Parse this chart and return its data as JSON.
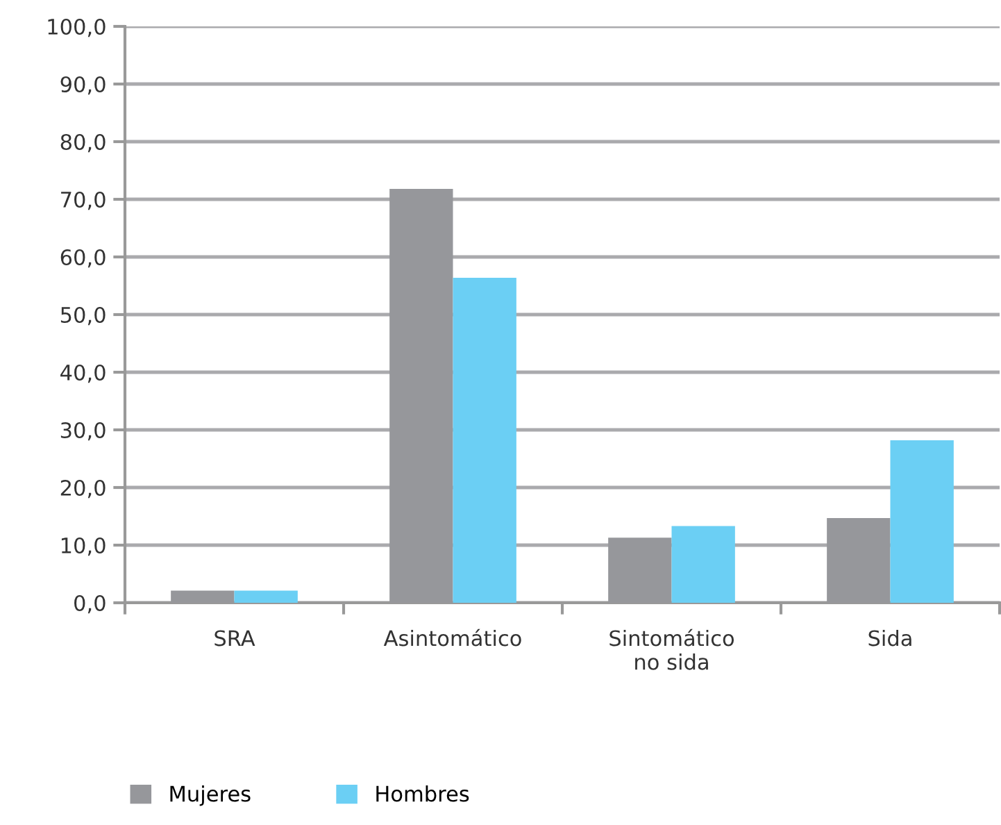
{
  "chart_data": {
    "type": "bar",
    "categories": [
      "SRA",
      "Asintomático",
      "Sintomático\nno sida",
      "Sida"
    ],
    "series": [
      {
        "name": "Mujeres",
        "color": "#96979b",
        "values": [
          2.1,
          71.8,
          11.3,
          14.7
        ]
      },
      {
        "name": "Hombres",
        "color": "#6bcff4",
        "values": [
          2.1,
          56.4,
          13.3,
          28.2
        ]
      }
    ],
    "ylim": [
      0,
      100
    ],
    "yticks": [
      {
        "value": 0,
        "label": "0,0"
      },
      {
        "value": 10,
        "label": "10,0"
      },
      {
        "value": 20,
        "label": "20,0"
      },
      {
        "value": 30,
        "label": "30,0"
      },
      {
        "value": 40,
        "label": "40,0"
      },
      {
        "value": 50,
        "label": "50,0"
      },
      {
        "value": 60,
        "label": "60,0"
      },
      {
        "value": 70,
        "label": "70,0"
      },
      {
        "value": 80,
        "label": "80,0"
      },
      {
        "value": 90,
        "label": "90,0"
      },
      {
        "value": 100,
        "label": "100,0"
      }
    ],
    "grid": "y",
    "legend": "bottom left"
  }
}
